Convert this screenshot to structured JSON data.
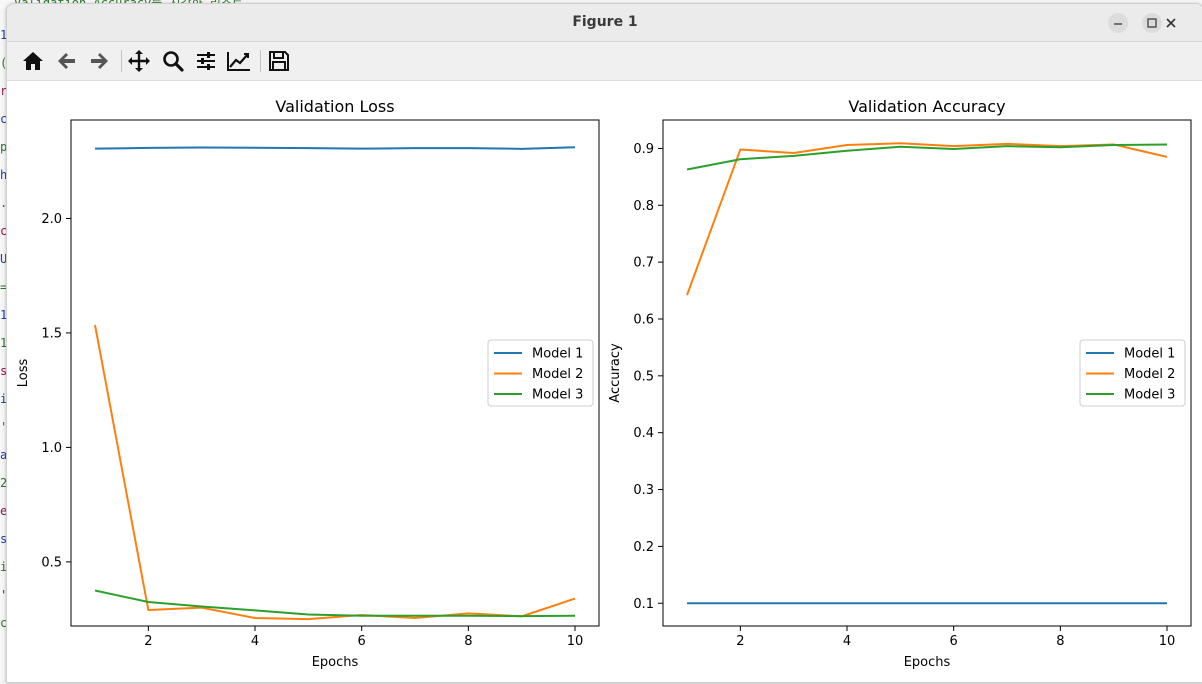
{
  "window": {
    "title": "Figure 1"
  },
  "background": {
    "top_line": "Validation Accuracy를 시각화 리스트",
    "margin_chars": [
      "1",
      "(",
      "r",
      "c",
      "p",
      "h",
      ".",
      "c",
      "U",
      "=",
      "1",
      "1",
      "s",
      "i",
      "'",
      "a",
      "2",
      "e",
      "s",
      "i",
      "'",
      "c"
    ]
  },
  "toolbar": {
    "buttons": [
      {
        "name": "home-button",
        "icon": "home-icon"
      },
      {
        "name": "back-button",
        "icon": "arrow-left-icon"
      },
      {
        "name": "forward-button",
        "icon": "arrow-right-icon"
      },
      {
        "name": "pan-button",
        "icon": "move-icon"
      },
      {
        "name": "zoom-button",
        "icon": "magnifier-icon"
      },
      {
        "name": "configure-subplots-button",
        "icon": "sliders-icon"
      },
      {
        "name": "edit-axis-button",
        "icon": "line-chart-icon"
      },
      {
        "name": "save-button",
        "icon": "floppy-disk-icon"
      }
    ]
  },
  "colors": {
    "model1": "#1f77b4",
    "model2": "#ff7f0e",
    "model3": "#2ca02c"
  },
  "chart_data": [
    {
      "type": "line",
      "title": "Validation Loss",
      "xlabel": "Epochs",
      "ylabel": "Loss",
      "xlim": [
        0.55,
        10.45
      ],
      "ylim": [
        0.22,
        2.43
      ],
      "xticks": [
        2,
        4,
        6,
        8,
        10
      ],
      "yticks": [
        0.5,
        1.0,
        1.5,
        2.0
      ],
      "ytick_labels": [
        "0.5",
        "1.0",
        "1.5",
        "2.0"
      ],
      "legend_position": "center-right",
      "grid": false,
      "x": [
        1,
        2,
        3,
        4,
        5,
        6,
        7,
        8,
        9,
        10
      ],
      "series": [
        {
          "name": "Model 1",
          "color": "#1f77b4",
          "values": [
            2.305,
            2.308,
            2.31,
            2.309,
            2.307,
            2.305,
            2.307,
            2.307,
            2.304,
            2.311
          ]
        },
        {
          "name": "Model 2",
          "color": "#ff7f0e",
          "values": [
            1.535,
            0.29,
            0.3,
            0.255,
            0.25,
            0.268,
            0.255,
            0.275,
            0.262,
            0.34
          ]
        },
        {
          "name": "Model 3",
          "color": "#2ca02c",
          "values": [
            0.375,
            0.325,
            0.305,
            0.288,
            0.27,
            0.265,
            0.265,
            0.265,
            0.263,
            0.265
          ]
        }
      ]
    },
    {
      "type": "line",
      "title": "Validation Accuracy",
      "xlabel": "Epochs",
      "ylabel": "Accuracy",
      "xlim": [
        0.55,
        10.45
      ],
      "ylim": [
        0.06,
        0.95
      ],
      "xticks": [
        2,
        4,
        6,
        8,
        10
      ],
      "yticks": [
        0.1,
        0.2,
        0.3,
        0.4,
        0.5,
        0.6,
        0.7,
        0.8,
        0.9
      ],
      "ytick_labels": [
        "0.1",
        "0.2",
        "0.3",
        "0.4",
        "0.5",
        "0.6",
        "0.7",
        "0.8",
        "0.9"
      ],
      "legend_position": "center-right",
      "grid": false,
      "x": [
        1,
        2,
        3,
        4,
        5,
        6,
        7,
        8,
        9,
        10
      ],
      "series": [
        {
          "name": "Model 1",
          "color": "#1f77b4",
          "values": [
            0.1,
            0.1,
            0.1,
            0.1,
            0.1,
            0.1,
            0.1,
            0.1,
            0.1,
            0.1
          ]
        },
        {
          "name": "Model 2",
          "color": "#ff7f0e",
          "values": [
            0.642,
            0.898,
            0.892,
            0.906,
            0.909,
            0.904,
            0.908,
            0.904,
            0.907,
            0.885
          ]
        },
        {
          "name": "Model 3",
          "color": "#2ca02c",
          "values": [
            0.863,
            0.881,
            0.887,
            0.896,
            0.903,
            0.899,
            0.904,
            0.902,
            0.906,
            0.907
          ]
        }
      ]
    }
  ]
}
